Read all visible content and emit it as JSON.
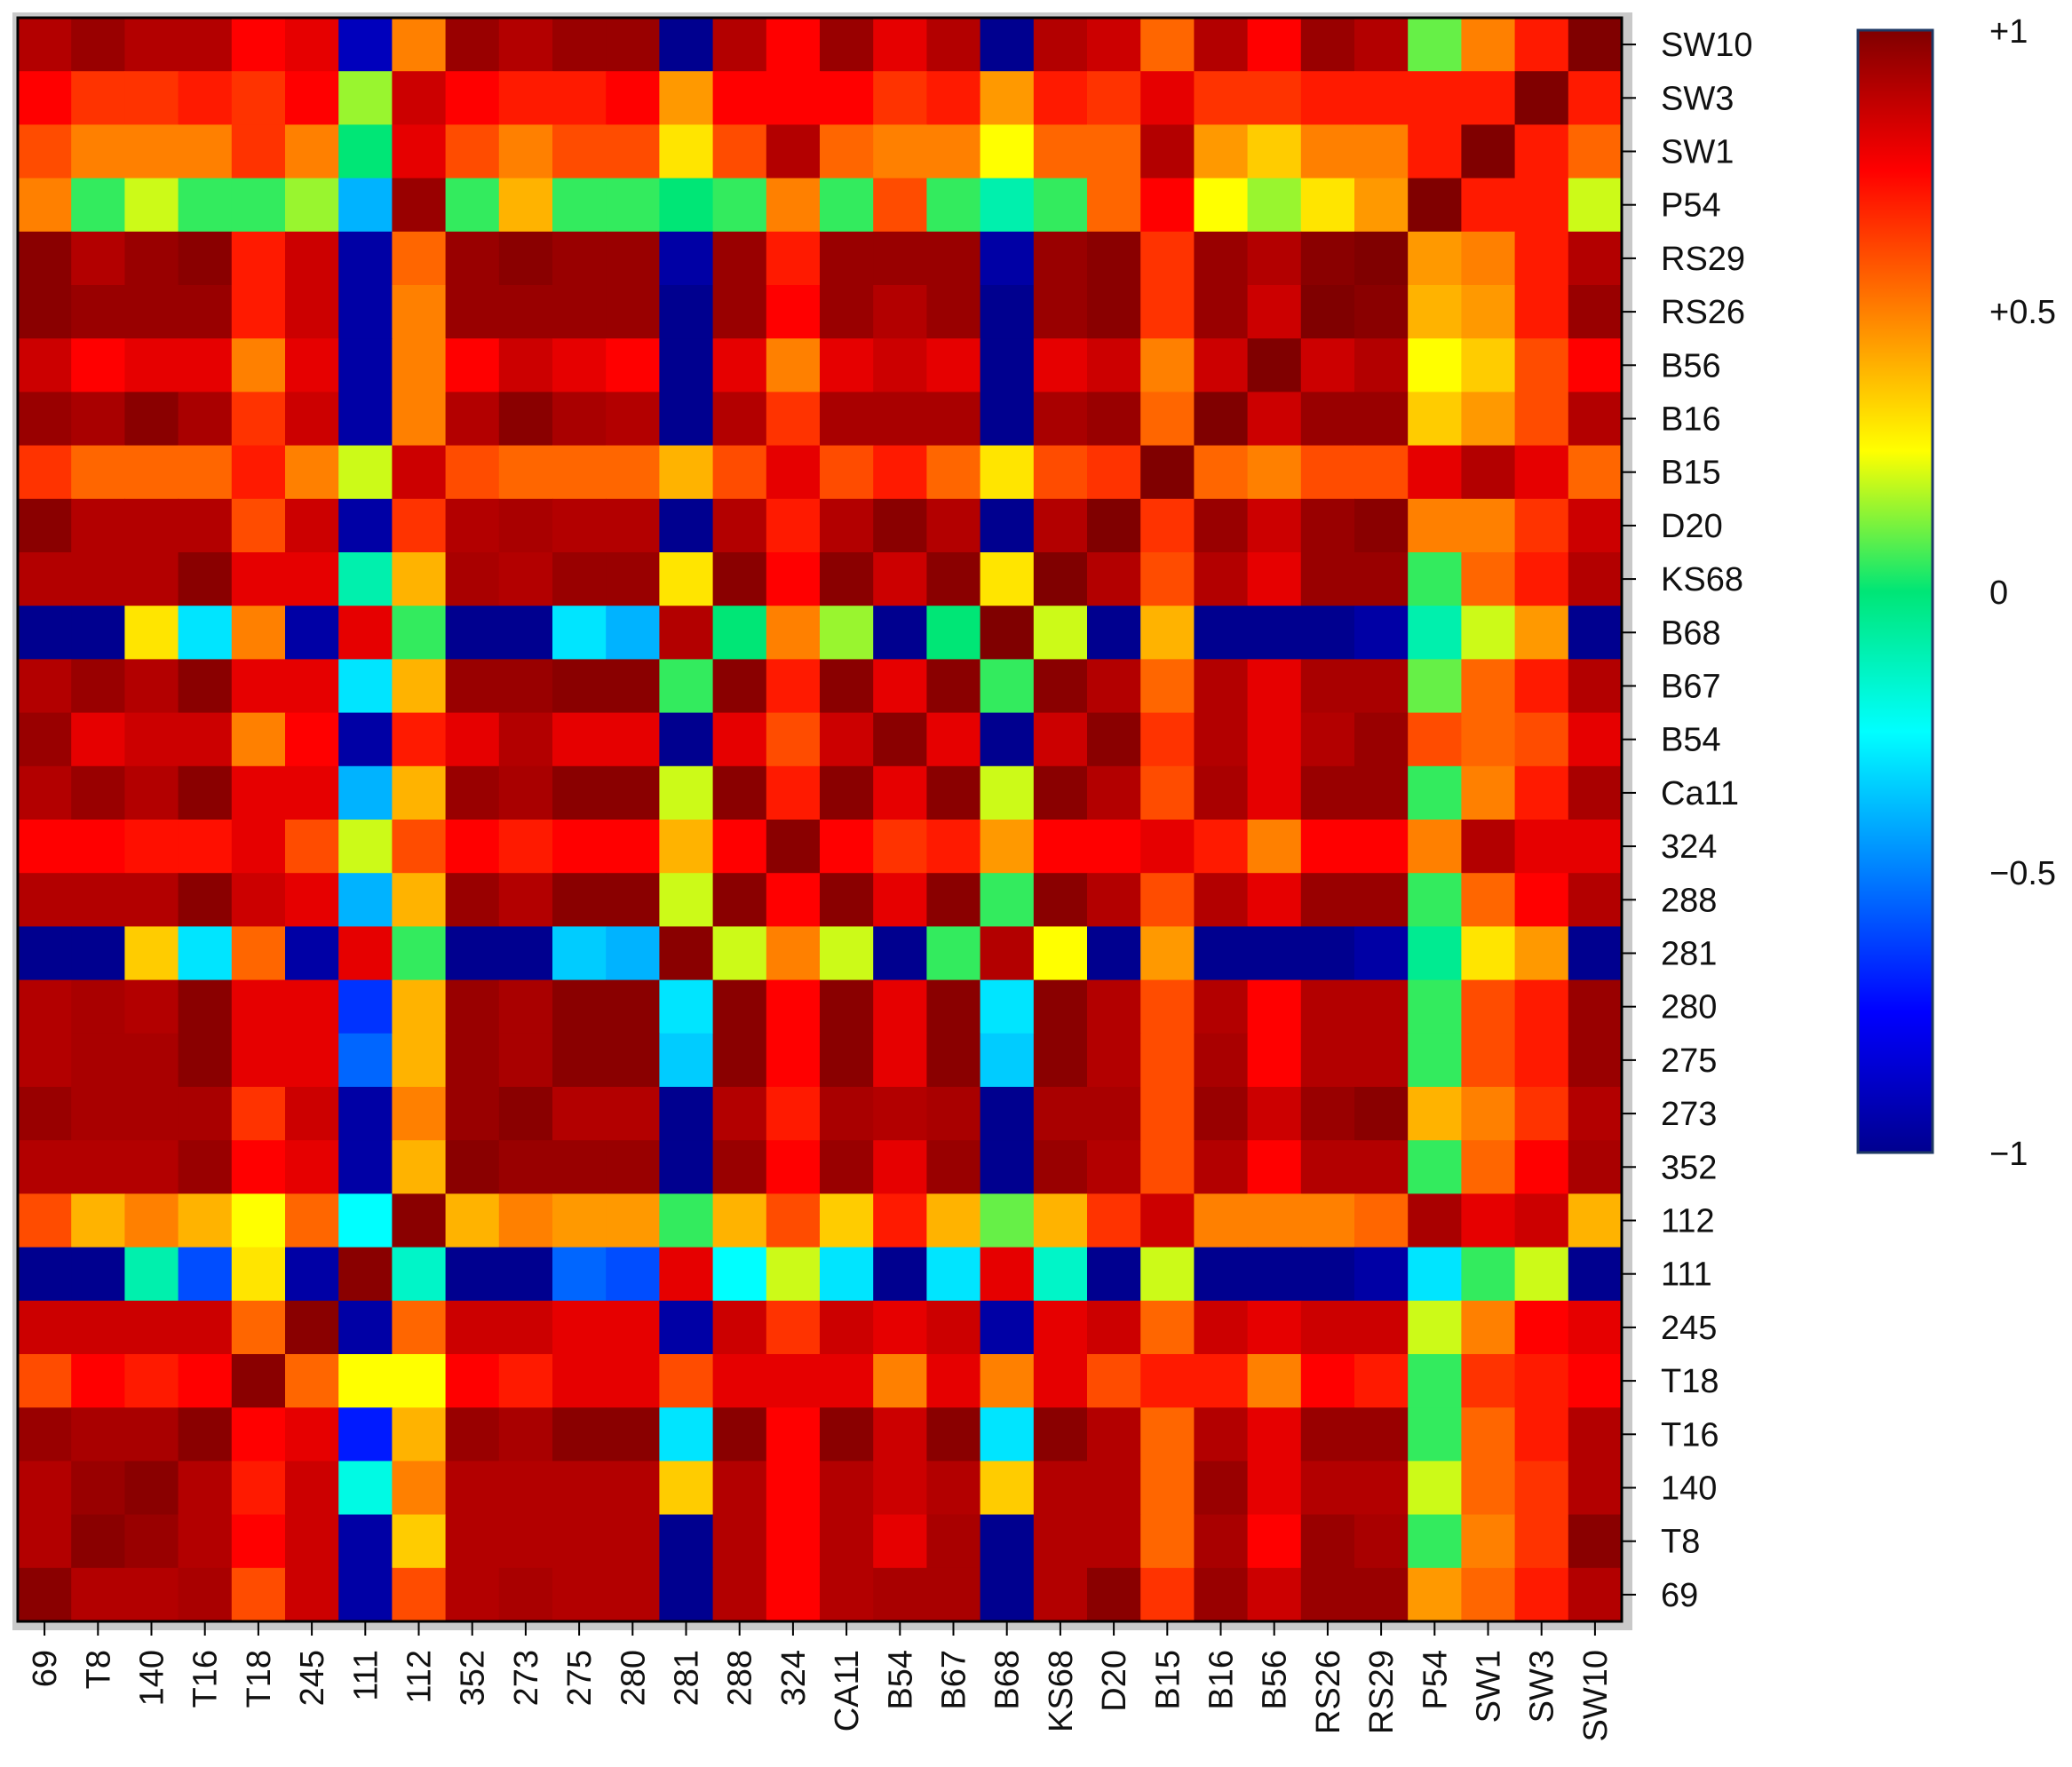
{
  "chart_data": {
    "type": "heatmap",
    "title": "",
    "x_categories": [
      "69",
      "T8",
      "140",
      "T16",
      "T18",
      "245",
      "111",
      "112",
      "352",
      "273",
      "275",
      "280",
      "281",
      "288",
      "324",
      "CA11",
      "B54",
      "B67",
      "B68",
      "KS68",
      "D20",
      "B15",
      "B16",
      "B56",
      "RS26",
      "RS29",
      "P54",
      "SW1",
      "SW3",
      "SW10"
    ],
    "y_categories": [
      "SW10",
      "SW3",
      "SW1",
      "P54",
      "RS29",
      "RS26",
      "B56",
      "B16",
      "B15",
      "D20",
      "KS68",
      "B68",
      "B67",
      "B54",
      "Ca11",
      "324",
      "288",
      "281",
      "280",
      "275",
      "273",
      "352",
      "112",
      "111",
      "245",
      "T18",
      "T16",
      "140",
      "T8",
      "69"
    ],
    "value_range": [
      -1,
      1
    ],
    "colorbar": {
      "ticks": [
        1,
        0.5,
        0,
        -0.5,
        -1
      ],
      "tick_labels": [
        "+1",
        "+0.5",
        "0",
        "−0.5",
        "−1"
      ],
      "colormap": "jet"
    },
    "values": [
      [
        0.9,
        0.95,
        0.9,
        0.9,
        0.75,
        0.8,
        -0.9,
        0.5,
        0.95,
        0.9,
        0.95,
        0.95,
        -1.0,
        0.9,
        0.75,
        0.95,
        0.8,
        0.9,
        -1.0,
        0.9,
        0.85,
        0.55,
        0.9,
        0.75,
        0.95,
        0.9,
        0.1,
        0.5,
        0.7,
        1.0
      ],
      [
        0.75,
        0.65,
        0.65,
        0.7,
        0.65,
        0.75,
        0.15,
        0.85,
        0.75,
        0.7,
        0.7,
        0.75,
        0.45,
        0.75,
        0.75,
        0.75,
        0.65,
        0.7,
        0.45,
        0.7,
        0.65,
        0.8,
        0.65,
        0.65,
        0.7,
        0.7,
        0.7,
        0.7,
        1.0,
        0.7
      ],
      [
        0.6,
        0.5,
        0.5,
        0.5,
        0.65,
        0.5,
        0.0,
        0.8,
        0.6,
        0.5,
        0.6,
        0.6,
        0.3,
        0.6,
        0.9,
        0.55,
        0.5,
        0.5,
        0.25,
        0.55,
        0.55,
        0.9,
        0.45,
        0.35,
        0.5,
        0.5,
        0.7,
        1.0,
        0.7,
        0.55
      ],
      [
        0.5,
        0.05,
        0.2,
        0.05,
        0.05,
        0.15,
        -0.4,
        0.95,
        0.05,
        0.4,
        0.05,
        0.05,
        0.0,
        0.05,
        0.5,
        0.05,
        0.6,
        0.05,
        -0.1,
        0.05,
        0.55,
        0.75,
        0.25,
        0.15,
        0.3,
        0.45,
        1.0,
        0.7,
        0.7,
        0.2
      ],
      [
        0.98,
        0.9,
        0.95,
        0.98,
        0.7,
        0.85,
        -0.95,
        0.55,
        0.95,
        0.98,
        0.95,
        0.95,
        -0.95,
        0.95,
        0.7,
        0.95,
        0.95,
        0.95,
        -0.95,
        0.95,
        0.98,
        0.65,
        0.95,
        0.9,
        0.98,
        1.0,
        0.45,
        0.5,
        0.7,
        0.9
      ],
      [
        0.98,
        0.95,
        0.95,
        0.95,
        0.7,
        0.85,
        -0.95,
        0.5,
        0.95,
        0.95,
        0.95,
        0.95,
        -1.0,
        0.95,
        0.75,
        0.95,
        0.9,
        0.95,
        -1.0,
        0.95,
        0.98,
        0.65,
        0.95,
        0.85,
        1.0,
        0.98,
        0.4,
        0.45,
        0.7,
        0.95
      ],
      [
        0.85,
        0.75,
        0.8,
        0.8,
        0.5,
        0.8,
        -0.95,
        0.5,
        0.75,
        0.85,
        0.8,
        0.75,
        -1.0,
        0.8,
        0.5,
        0.8,
        0.85,
        0.8,
        -1.0,
        0.8,
        0.85,
        0.5,
        0.85,
        1.0,
        0.85,
        0.9,
        0.25,
        0.35,
        0.6,
        0.75
      ],
      [
        0.95,
        0.92,
        0.98,
        0.92,
        0.65,
        0.85,
        -0.95,
        0.5,
        0.9,
        0.98,
        0.92,
        0.9,
        -1.0,
        0.9,
        0.65,
        0.92,
        0.92,
        0.92,
        -1.0,
        0.92,
        0.95,
        0.55,
        1.0,
        0.85,
        0.95,
        0.95,
        0.35,
        0.45,
        0.6,
        0.9
      ],
      [
        0.65,
        0.55,
        0.55,
        0.55,
        0.7,
        0.5,
        0.2,
        0.85,
        0.6,
        0.55,
        0.55,
        0.55,
        0.4,
        0.6,
        0.8,
        0.6,
        0.7,
        0.55,
        0.3,
        0.6,
        0.65,
        1.0,
        0.55,
        0.5,
        0.6,
        0.6,
        0.8,
        0.9,
        0.8,
        0.55
      ],
      [
        0.98,
        0.9,
        0.9,
        0.9,
        0.6,
        0.85,
        -0.95,
        0.65,
        0.9,
        0.92,
        0.9,
        0.9,
        -1.0,
        0.9,
        0.7,
        0.9,
        0.98,
        0.9,
        -1.0,
        0.9,
        1.0,
        0.65,
        0.95,
        0.85,
        0.95,
        0.98,
        0.5,
        0.5,
        0.65,
        0.85
      ],
      [
        0.9,
        0.9,
        0.9,
        0.98,
        0.8,
        0.8,
        -0.1,
        0.4,
        0.92,
        0.9,
        0.95,
        0.95,
        0.3,
        0.98,
        0.75,
        0.98,
        0.85,
        0.98,
        0.3,
        1.0,
        0.9,
        0.6,
        0.9,
        0.8,
        0.95,
        0.95,
        0.05,
        0.55,
        0.7,
        0.9
      ],
      [
        -1.0,
        -1.0,
        0.3,
        -0.3,
        0.5,
        -0.95,
        0.8,
        0.05,
        -1.0,
        -1.0,
        -0.3,
        -0.4,
        0.9,
        0.0,
        0.5,
        0.15,
        -1.0,
        0.0,
        1.0,
        0.2,
        -1.0,
        0.4,
        -1.0,
        -1.0,
        -1.0,
        -0.95,
        -0.1,
        0.2,
        0.45,
        -1.0
      ],
      [
        0.9,
        0.95,
        0.9,
        0.98,
        0.8,
        0.8,
        -0.3,
        0.4,
        0.95,
        0.95,
        0.98,
        0.98,
        0.05,
        0.98,
        0.7,
        0.98,
        0.8,
        0.98,
        0.05,
        0.98,
        0.9,
        0.55,
        0.9,
        0.8,
        0.92,
        0.92,
        0.1,
        0.55,
        0.7,
        0.9
      ],
      [
        0.95,
        0.8,
        0.85,
        0.85,
        0.5,
        0.75,
        -0.95,
        0.7,
        0.8,
        0.9,
        0.8,
        0.8,
        -1.0,
        0.8,
        0.6,
        0.85,
        0.98,
        0.8,
        -1.0,
        0.85,
        0.98,
        0.65,
        0.9,
        0.8,
        0.9,
        0.95,
        0.6,
        0.55,
        0.6,
        0.8
      ],
      [
        0.9,
        0.95,
        0.9,
        0.98,
        0.8,
        0.8,
        -0.4,
        0.4,
        0.95,
        0.92,
        0.98,
        0.98,
        0.2,
        0.98,
        0.7,
        0.98,
        0.8,
        0.98,
        0.2,
        0.98,
        0.9,
        0.6,
        0.92,
        0.8,
        0.95,
        0.95,
        0.05,
        0.5,
        0.7,
        0.92
      ],
      [
        0.75,
        0.75,
        0.72,
        0.72,
        0.8,
        0.6,
        0.2,
        0.6,
        0.75,
        0.7,
        0.75,
        0.75,
        0.4,
        0.75,
        0.98,
        0.75,
        0.65,
        0.7,
        0.45,
        0.75,
        0.75,
        0.8,
        0.7,
        0.5,
        0.75,
        0.75,
        0.5,
        0.9,
        0.8,
        0.8
      ],
      [
        0.9,
        0.9,
        0.9,
        0.98,
        0.85,
        0.8,
        -0.4,
        0.4,
        0.95,
        0.9,
        0.98,
        0.98,
        0.2,
        0.98,
        0.75,
        0.98,
        0.8,
        0.98,
        0.05,
        0.98,
        0.9,
        0.6,
        0.9,
        0.8,
        0.95,
        0.95,
        0.05,
        0.55,
        0.75,
        0.9
      ],
      [
        -1.0,
        -1.0,
        0.35,
        -0.3,
        0.55,
        -0.95,
        0.8,
        0.05,
        -1.0,
        -1.0,
        -0.35,
        -0.4,
        0.98,
        0.2,
        0.5,
        0.2,
        -1.0,
        0.05,
        0.9,
        0.25,
        -1.0,
        0.45,
        -1.0,
        -1.0,
        -1.0,
        -0.95,
        -0.05,
        0.3,
        0.45,
        -1.0
      ],
      [
        0.9,
        0.92,
        0.9,
        0.98,
        0.8,
        0.8,
        -0.65,
        0.4,
        0.95,
        0.92,
        0.98,
        0.98,
        -0.3,
        0.98,
        0.75,
        0.98,
        0.8,
        0.98,
        -0.3,
        0.98,
        0.9,
        0.6,
        0.9,
        0.75,
        0.9,
        0.9,
        0.05,
        0.6,
        0.7,
        0.95
      ],
      [
        0.9,
        0.92,
        0.92,
        0.98,
        0.8,
        0.8,
        -0.55,
        0.4,
        0.95,
        0.92,
        0.98,
        0.98,
        -0.35,
        0.98,
        0.75,
        0.98,
        0.8,
        0.98,
        -0.35,
        0.98,
        0.9,
        0.6,
        0.92,
        0.75,
        0.9,
        0.9,
        0.05,
        0.6,
        0.7,
        0.95
      ],
      [
        0.95,
        0.92,
        0.92,
        0.92,
        0.65,
        0.85,
        -0.95,
        0.5,
        0.95,
        0.98,
        0.9,
        0.9,
        -1.0,
        0.9,
        0.7,
        0.92,
        0.9,
        0.92,
        -1.0,
        0.92,
        0.92,
        0.6,
        0.95,
        0.85,
        0.95,
        0.98,
        0.4,
        0.5,
        0.65,
        0.9
      ],
      [
        0.9,
        0.9,
        0.9,
        0.95,
        0.75,
        0.8,
        -0.95,
        0.4,
        0.98,
        0.95,
        0.95,
        0.95,
        -1.0,
        0.95,
        0.75,
        0.95,
        0.8,
        0.95,
        -1.0,
        0.95,
        0.9,
        0.6,
        0.9,
        0.75,
        0.9,
        0.9,
        0.05,
        0.55,
        0.75,
        0.92
      ],
      [
        0.6,
        0.4,
        0.5,
        0.4,
        0.25,
        0.55,
        -0.25,
        0.98,
        0.4,
        0.5,
        0.45,
        0.45,
        0.05,
        0.4,
        0.6,
        0.35,
        0.7,
        0.4,
        0.1,
        0.4,
        0.65,
        0.85,
        0.5,
        0.5,
        0.5,
        0.55,
        0.92,
        0.8,
        0.85,
        0.4
      ],
      [
        -1.0,
        -1.0,
        -0.1,
        -0.6,
        0.3,
        -0.95,
        0.98,
        -0.15,
        -1.0,
        -1.0,
        -0.55,
        -0.6,
        0.8,
        -0.25,
        0.2,
        -0.3,
        -1.0,
        -0.3,
        0.8,
        -0.15,
        -1.0,
        0.2,
        -1.0,
        -1.0,
        -1.0,
        -0.95,
        -0.3,
        0.05,
        0.2,
        -1.0
      ],
      [
        0.85,
        0.85,
        0.85,
        0.85,
        0.55,
        0.98,
        -0.95,
        0.55,
        0.85,
        0.85,
        0.8,
        0.8,
        -0.95,
        0.85,
        0.65,
        0.85,
        0.8,
        0.85,
        -0.95,
        0.8,
        0.85,
        0.55,
        0.85,
        0.8,
        0.85,
        0.85,
        0.2,
        0.5,
        0.75,
        0.8
      ],
      [
        0.6,
        0.75,
        0.7,
        0.75,
        0.98,
        0.55,
        0.25,
        0.25,
        0.75,
        0.7,
        0.8,
        0.8,
        0.6,
        0.8,
        0.8,
        0.8,
        0.5,
        0.8,
        0.5,
        0.8,
        0.6,
        0.7,
        0.7,
        0.5,
        0.75,
        0.7,
        0.05,
        0.65,
        0.7,
        0.75
      ],
      [
        0.95,
        0.92,
        0.92,
        0.98,
        0.75,
        0.8,
        -0.7,
        0.4,
        0.95,
        0.92,
        0.98,
        0.98,
        -0.3,
        0.98,
        0.75,
        0.98,
        0.85,
        0.98,
        -0.3,
        0.98,
        0.9,
        0.55,
        0.9,
        0.8,
        0.95,
        0.95,
        0.05,
        0.55,
        0.7,
        0.9
      ],
      [
        0.9,
        0.95,
        0.98,
        0.9,
        0.7,
        0.85,
        -0.2,
        0.5,
        0.9,
        0.9,
        0.9,
        0.9,
        0.35,
        0.9,
        0.75,
        0.9,
        0.85,
        0.9,
        0.35,
        0.9,
        0.9,
        0.55,
        0.95,
        0.8,
        0.9,
        0.9,
        0.2,
        0.55,
        0.65,
        0.9
      ],
      [
        0.9,
        0.98,
        0.95,
        0.9,
        0.75,
        0.85,
        -0.95,
        0.35,
        0.9,
        0.9,
        0.9,
        0.9,
        -1.0,
        0.9,
        0.75,
        0.9,
        0.8,
        0.92,
        -1.0,
        0.9,
        0.9,
        0.55,
        0.92,
        0.75,
        0.95,
        0.92,
        0.05,
        0.5,
        0.65,
        0.98
      ],
      [
        0.98,
        0.9,
        0.9,
        0.92,
        0.6,
        0.85,
        -0.95,
        0.6,
        0.9,
        0.92,
        0.9,
        0.9,
        -1.0,
        0.9,
        0.75,
        0.9,
        0.92,
        0.92,
        -1.0,
        0.9,
        0.98,
        0.65,
        0.95,
        0.85,
        0.95,
        0.95,
        0.45,
        0.55,
        0.7,
        0.9
      ]
    ]
  }
}
